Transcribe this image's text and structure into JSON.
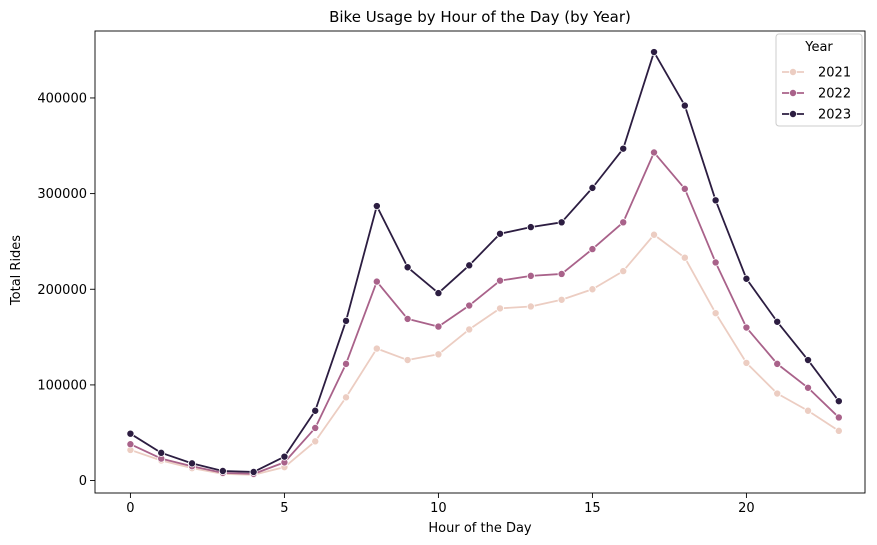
{
  "chart_data": {
    "type": "line",
    "title": "Bike Usage by Hour of the Day (by Year)",
    "xlabel": "Hour of the Day",
    "ylabel": "Total Rides",
    "xlim": [
      -1.15,
      23.85
    ],
    "ylim": [
      -13000,
      470000
    ],
    "xticks": [
      0,
      5,
      10,
      15,
      20
    ],
    "yticks": [
      0,
      100000,
      200000,
      300000,
      400000
    ],
    "grid": false,
    "legend": {
      "title": "Year",
      "placement": "top-right"
    },
    "x": [
      0,
      1,
      2,
      3,
      4,
      5,
      6,
      7,
      8,
      9,
      10,
      11,
      12,
      13,
      14,
      15,
      16,
      17,
      18,
      19,
      20,
      21,
      22,
      23
    ],
    "series": [
      {
        "name": "2021",
        "color": "#eccdc2",
        "values": [
          32000,
          21000,
          13000,
          7000,
          6000,
          14000,
          41000,
          87000,
          138000,
          126000,
          132000,
          158000,
          180000,
          182000,
          189000,
          200000,
          219000,
          257000,
          233000,
          175000,
          123000,
          91000,
          73000,
          52000
        ]
      },
      {
        "name": "2022",
        "color": "#a9628a",
        "values": [
          38000,
          23000,
          15000,
          8000,
          7000,
          19000,
          55000,
          122000,
          208000,
          169000,
          161000,
          183000,
          209000,
          214000,
          216000,
          242000,
          270000,
          343000,
          305000,
          228000,
          160000,
          122000,
          97000,
          66000
        ]
      },
      {
        "name": "2023",
        "color": "#2c1d41",
        "values": [
          49000,
          29000,
          18000,
          10000,
          9000,
          25000,
          73000,
          167000,
          287000,
          223000,
          196000,
          225000,
          258000,
          265000,
          270000,
          306000,
          347000,
          448000,
          392000,
          293000,
          211000,
          166000,
          126000,
          83000
        ]
      }
    ]
  }
}
